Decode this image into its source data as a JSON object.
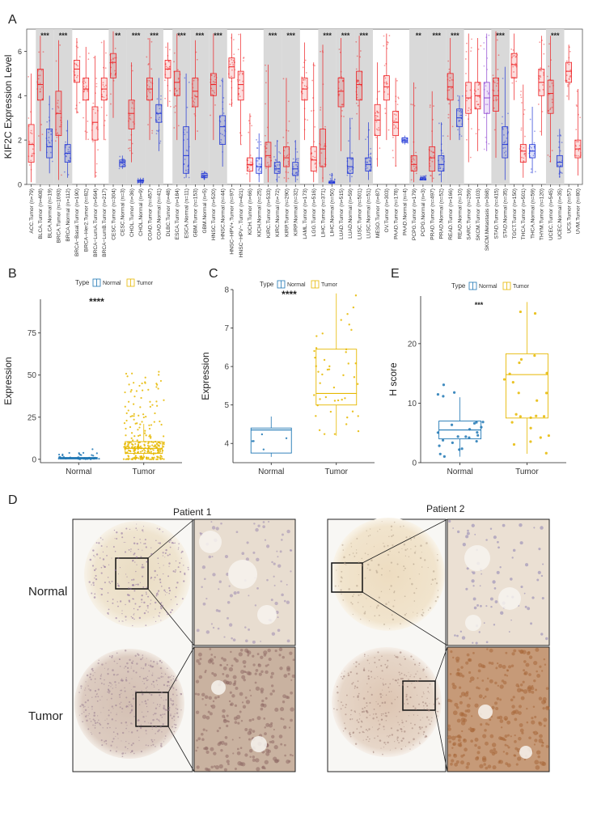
{
  "panel_letters": {
    "A": "A",
    "B": "B",
    "C": "C",
    "D": "D",
    "E": "E"
  },
  "panel_d": {
    "col_titles": [
      "Patient 1",
      "Patient 2"
    ],
    "row_labels": [
      "Normal",
      "Tumor"
    ]
  },
  "colors": {
    "tumor": "#ee1f22",
    "normal": "#1f35d6",
    "metastasis": "#8a3fd0",
    "shade": "#d9d9d9",
    "cmp_normal": "#1f77b4",
    "cmp_tumor": "#e6b800"
  },
  "chart_data": [
    {
      "id": "A",
      "type": "box",
      "ylabel": "KIF2C Expression Level",
      "ylim": [
        0,
        7
      ],
      "yticks": [
        0,
        2,
        4,
        6
      ],
      "categories": [
        "ACC.Tumor (n=79)",
        "BLCA.Tumor (n=408)",
        "BLCA.Normal (n=19)",
        "BRCA.Tumor (n=1093)",
        "BRCA.Normal (n=112)",
        "BRCA−Basal.Tumor (n=190)",
        "BRCA−Her2.Tumor (n=82)",
        "BRCA−LumA.Tumor (n=564)",
        "BRCA−LumB.Tumor (n=217)",
        "CESC.Tumor (n=304)",
        "CESC.Normal (n=3)",
        "CHOL.Tumor (n=36)",
        "CHOL.Normal (n=9)",
        "COAD.Tumor (n=457)",
        "COAD.Normal (n=41)",
        "DLBC.Tumor (n=48)",
        "ESCA.Tumor (n=184)",
        "ESCA.Normal (n=11)",
        "GBM.Tumor (n=153)",
        "GBM.Normal (n=5)",
        "HNSC.Tumor (n=520)",
        "HNSC.Normal (n=44)",
        "HNSC−HPV+.Tumor (n=97)",
        "HNSC−HPV−.Tumor (n=421)",
        "KICH.Tumor (n=66)",
        "KICH.Normal (n=25)",
        "KIRC.Tumor (n=533)",
        "KIRC.Normal (n=72)",
        "KIRP.Tumor (n=290)",
        "KIRP.Normal (n=32)",
        "LAML.Tumor (n=173)",
        "LGG.Tumor (n=516)",
        "LIHC.Tumor (n=371)",
        "LIHC.Normal (n=50)",
        "LUAD.Tumor (n=515)",
        "LUAD.Normal (n=59)",
        "LUSC.Tumor (n=501)",
        "LUSC.Normal (n=51)",
        "MESO.Tumor (n=87)",
        "OV.Tumor (n=303)",
        "PAAD.Tumor (n=178)",
        "PAAD.Normal (n=4)",
        "PCPG.Tumor (n=179)",
        "PCPG.Normal (n=3)",
        "PRAD.Tumor (n=497)",
        "PRAD.Normal (n=52)",
        "READ.Tumor (n=166)",
        "READ.Normal (n=10)",
        "SARC.Tumor (n=259)",
        "SKCM.Tumor (n=103)",
        "SKCM.Metastasis (n=368)",
        "STAD.Tumor (n=415)",
        "STAD.Normal (n=35)",
        "TGCT.Tumor (n=150)",
        "THCA.Tumor (n=501)",
        "THCA.Normal (n=59)",
        "THYM.Tumor (n=120)",
        "UCEC.Tumor (n=545)",
        "UCEC.Normal (n=35)",
        "UCS.Tumor (n=57)",
        "UVM.Tumor (n=80)"
      ],
      "kind": [
        "T",
        "T",
        "N",
        "T",
        "N",
        "T",
        "T",
        "T",
        "T",
        "T",
        "N",
        "T",
        "N",
        "T",
        "N",
        "T",
        "T",
        "N",
        "T",
        "N",
        "T",
        "N",
        "T",
        "T",
        "T",
        "N",
        "T",
        "N",
        "T",
        "N",
        "T",
        "T",
        "T",
        "N",
        "T",
        "N",
        "T",
        "N",
        "T",
        "T",
        "T",
        "N",
        "T",
        "N",
        "T",
        "N",
        "T",
        "N",
        "T",
        "T",
        "M",
        "T",
        "N",
        "T",
        "T",
        "N",
        "T",
        "T",
        "N",
        "T",
        "T"
      ],
      "q1": [
        1.0,
        3.8,
        1.2,
        2.2,
        1.0,
        4.6,
        3.8,
        2.0,
        3.8,
        4.8,
        0.8,
        2.5,
        0.1,
        3.8,
        2.8,
        4.8,
        4.0,
        0.5,
        3.5,
        0.3,
        4.0,
        1.8,
        4.8,
        3.8,
        0.6,
        0.5,
        0.8,
        0.5,
        0.8,
        0.4,
        3.8,
        0.6,
        0.8,
        0.05,
        3.5,
        0.5,
        3.8,
        0.6,
        2.2,
        3.8,
        2.2,
        1.9,
        0.6,
        0.2,
        0.6,
        0.6,
        3.8,
        2.6,
        3.2,
        3.4,
        3.2,
        3.3,
        1.2,
        4.8,
        1.0,
        1.2,
        4.0,
        3.2,
        0.8,
        4.6,
        1.2
      ],
      "median": [
        1.8,
        4.5,
        1.7,
        3.2,
        1.4,
        5.2,
        4.3,
        2.8,
        4.3,
        5.5,
        1.0,
        3.2,
        0.15,
        4.3,
        3.2,
        5.2,
        4.6,
        1.3,
        4.2,
        0.4,
        4.5,
        2.6,
        5.3,
        4.5,
        0.9,
        0.8,
        1.3,
        0.7,
        1.2,
        0.7,
        4.3,
        1.1,
        1.6,
        0.1,
        4.2,
        0.8,
        4.5,
        0.9,
        2.9,
        4.4,
        2.8,
        2.0,
        0.9,
        0.25,
        1.2,
        0.9,
        4.4,
        3.0,
        3.9,
        4.0,
        3.9,
        4.0,
        1.8,
        5.4,
        1.5,
        1.5,
        4.6,
        4.1,
        1.0,
        5.1,
        1.6
      ],
      "q3": [
        2.7,
        5.2,
        2.5,
        4.2,
        1.8,
        5.6,
        4.8,
        3.5,
        4.8,
        5.9,
        1.1,
        3.8,
        0.2,
        4.8,
        3.6,
        5.6,
        5.1,
        2.6,
        4.8,
        0.5,
        5.0,
        3.1,
        5.7,
        5.1,
        1.2,
        1.2,
        1.9,
        1.0,
        1.7,
        1.0,
        4.8,
        1.7,
        2.5,
        0.15,
        4.8,
        1.2,
        5.1,
        1.2,
        3.6,
        4.9,
        3.3,
        2.1,
        1.3,
        0.3,
        1.7,
        1.3,
        5.0,
        3.4,
        4.6,
        4.6,
        4.6,
        4.8,
        2.6,
        5.9,
        1.8,
        1.8,
        5.2,
        4.7,
        1.3,
        5.5,
        2.0
      ],
      "lo": [
        0.1,
        1.5,
        0.5,
        0.2,
        0.3,
        3.2,
        2.0,
        0.3,
        2.0,
        3.0,
        0.7,
        1.0,
        0.0,
        2.0,
        1.5,
        3.5,
        2.0,
        0.3,
        2.0,
        0.2,
        2.0,
        0.8,
        3.5,
        1.8,
        0.1,
        0.1,
        0.1,
        0.1,
        0.1,
        0.1,
        2.0,
        0.1,
        0.1,
        0.0,
        1.5,
        0.1,
        2.0,
        0.2,
        0.8,
        2.0,
        0.8,
        1.8,
        0.1,
        0.2,
        0.1,
        0.1,
        2.0,
        2.0,
        1.0,
        1.5,
        1.5,
        1.2,
        0.2,
        3.8,
        0.3,
        0.5,
        2.2,
        1.0,
        0.3,
        3.8,
        0.4
      ],
      "hi": [
        5.0,
        6.7,
        4.0,
        6.5,
        2.9,
        6.6,
        6.2,
        5.8,
        6.5,
        6.9,
        1.3,
        5.5,
        0.3,
        6.6,
        4.8,
        6.4,
        6.8,
        5.0,
        6.5,
        0.6,
        6.8,
        4.8,
        6.8,
        6.8,
        3.2,
        2.3,
        5.4,
        2.0,
        4.8,
        2.0,
        6.4,
        5.5,
        6.3,
        0.5,
        6.6,
        3.0,
        6.7,
        2.8,
        5.5,
        6.8,
        4.8,
        2.2,
        4.6,
        0.4,
        4.2,
        2.8,
        6.6,
        4.0,
        6.8,
        6.6,
        6.8,
        6.9,
        5.3,
        6.8,
        4.5,
        3.5,
        6.7,
        6.7,
        2.5,
        6.3,
        4.3
      ],
      "sig": [
        {
          "pair": [
            1,
            2
          ],
          "label": "***"
        },
        {
          "pair": [
            3,
            4
          ],
          "label": "***"
        },
        {
          "pair": [
            9,
            10
          ],
          "label": "**"
        },
        {
          "pair": [
            11,
            12
          ],
          "label": "***"
        },
        {
          "pair": [
            13,
            14
          ],
          "label": "***"
        },
        {
          "pair": [
            16,
            17
          ],
          "label": "***"
        },
        {
          "pair": [
            18,
            19
          ],
          "label": "***"
        },
        {
          "pair": [
            20,
            21
          ],
          "label": "***"
        },
        {
          "pair": [
            26,
            27
          ],
          "label": "***"
        },
        {
          "pair": [
            28,
            29
          ],
          "label": "***"
        },
        {
          "pair": [
            32,
            33
          ],
          "label": "***"
        },
        {
          "pair": [
            34,
            35
          ],
          "label": "***"
        },
        {
          "pair": [
            36,
            37
          ],
          "label": "***"
        },
        {
          "pair": [
            42,
            43
          ],
          "label": "**"
        },
        {
          "pair": [
            44,
            45
          ],
          "label": "***"
        },
        {
          "pair": [
            46,
            47
          ],
          "label": "***"
        },
        {
          "pair": [
            51,
            52
          ],
          "label": "***"
        },
        {
          "pair": [
            57,
            58
          ],
          "label": "***"
        }
      ]
    },
    {
      "id": "B",
      "type": "box",
      "ylabel": "Expression",
      "legend_title": "Type",
      "legend": [
        "Normal",
        "Tumor"
      ],
      "sig_label": "****",
      "categories": [
        "Normal",
        "Tumor"
      ],
      "ylim": [
        -2,
        95
      ],
      "yticks": [
        0,
        25,
        50,
        75
      ],
      "boxes": [
        {
          "q1": 0.2,
          "median": 0.6,
          "q3": 1.1,
          "lo": 0,
          "hi": 2
        },
        {
          "q1": 3.5,
          "median": 6.5,
          "q3": 10.5,
          "lo": 0,
          "hi": 21
        }
      ],
      "scatter_range": [
        [
          0,
          6
        ],
        [
          0,
          57
        ]
      ]
    },
    {
      "id": "C",
      "type": "box",
      "ylabel": "Expression",
      "legend_title": "Type",
      "legend": [
        "Normal",
        "Tumor"
      ],
      "sig_label": "****",
      "categories": [
        "Normal",
        "Tumor"
      ],
      "ylim": [
        3.5,
        8
      ],
      "yticks": [
        4,
        5,
        6,
        7,
        8
      ],
      "boxes": [
        {
          "q1": 3.75,
          "median": 4.35,
          "q3": 4.4,
          "lo": 3.65,
          "hi": 4.7
        },
        {
          "q1": 5.0,
          "median": 5.3,
          "q3": 6.45,
          "lo": 4.2,
          "hi": 7.9
        }
      ],
      "scatter_range": [
        [
          3.65,
          4.7
        ],
        [
          4.2,
          7.9
        ]
      ]
    },
    {
      "id": "E",
      "type": "box",
      "ylabel": "H score",
      "legend_title": "Type",
      "legend": [
        "Normal",
        "Tumor"
      ],
      "sig_label": "***",
      "categories": [
        "Normal",
        "Tumor"
      ],
      "ylim": [
        0,
        28
      ],
      "yticks": [
        0,
        10,
        20
      ],
      "boxes": [
        {
          "q1": 4,
          "median": 5.5,
          "q3": 7,
          "lo": 1,
          "hi": 11
        },
        {
          "q1": 7.5,
          "median": 14.8,
          "q3": 18.3,
          "lo": 1.5,
          "hi": 27
        }
      ],
      "scatter_range": [
        [
          1,
          13.5
        ],
        [
          1,
          27
        ]
      ]
    }
  ]
}
